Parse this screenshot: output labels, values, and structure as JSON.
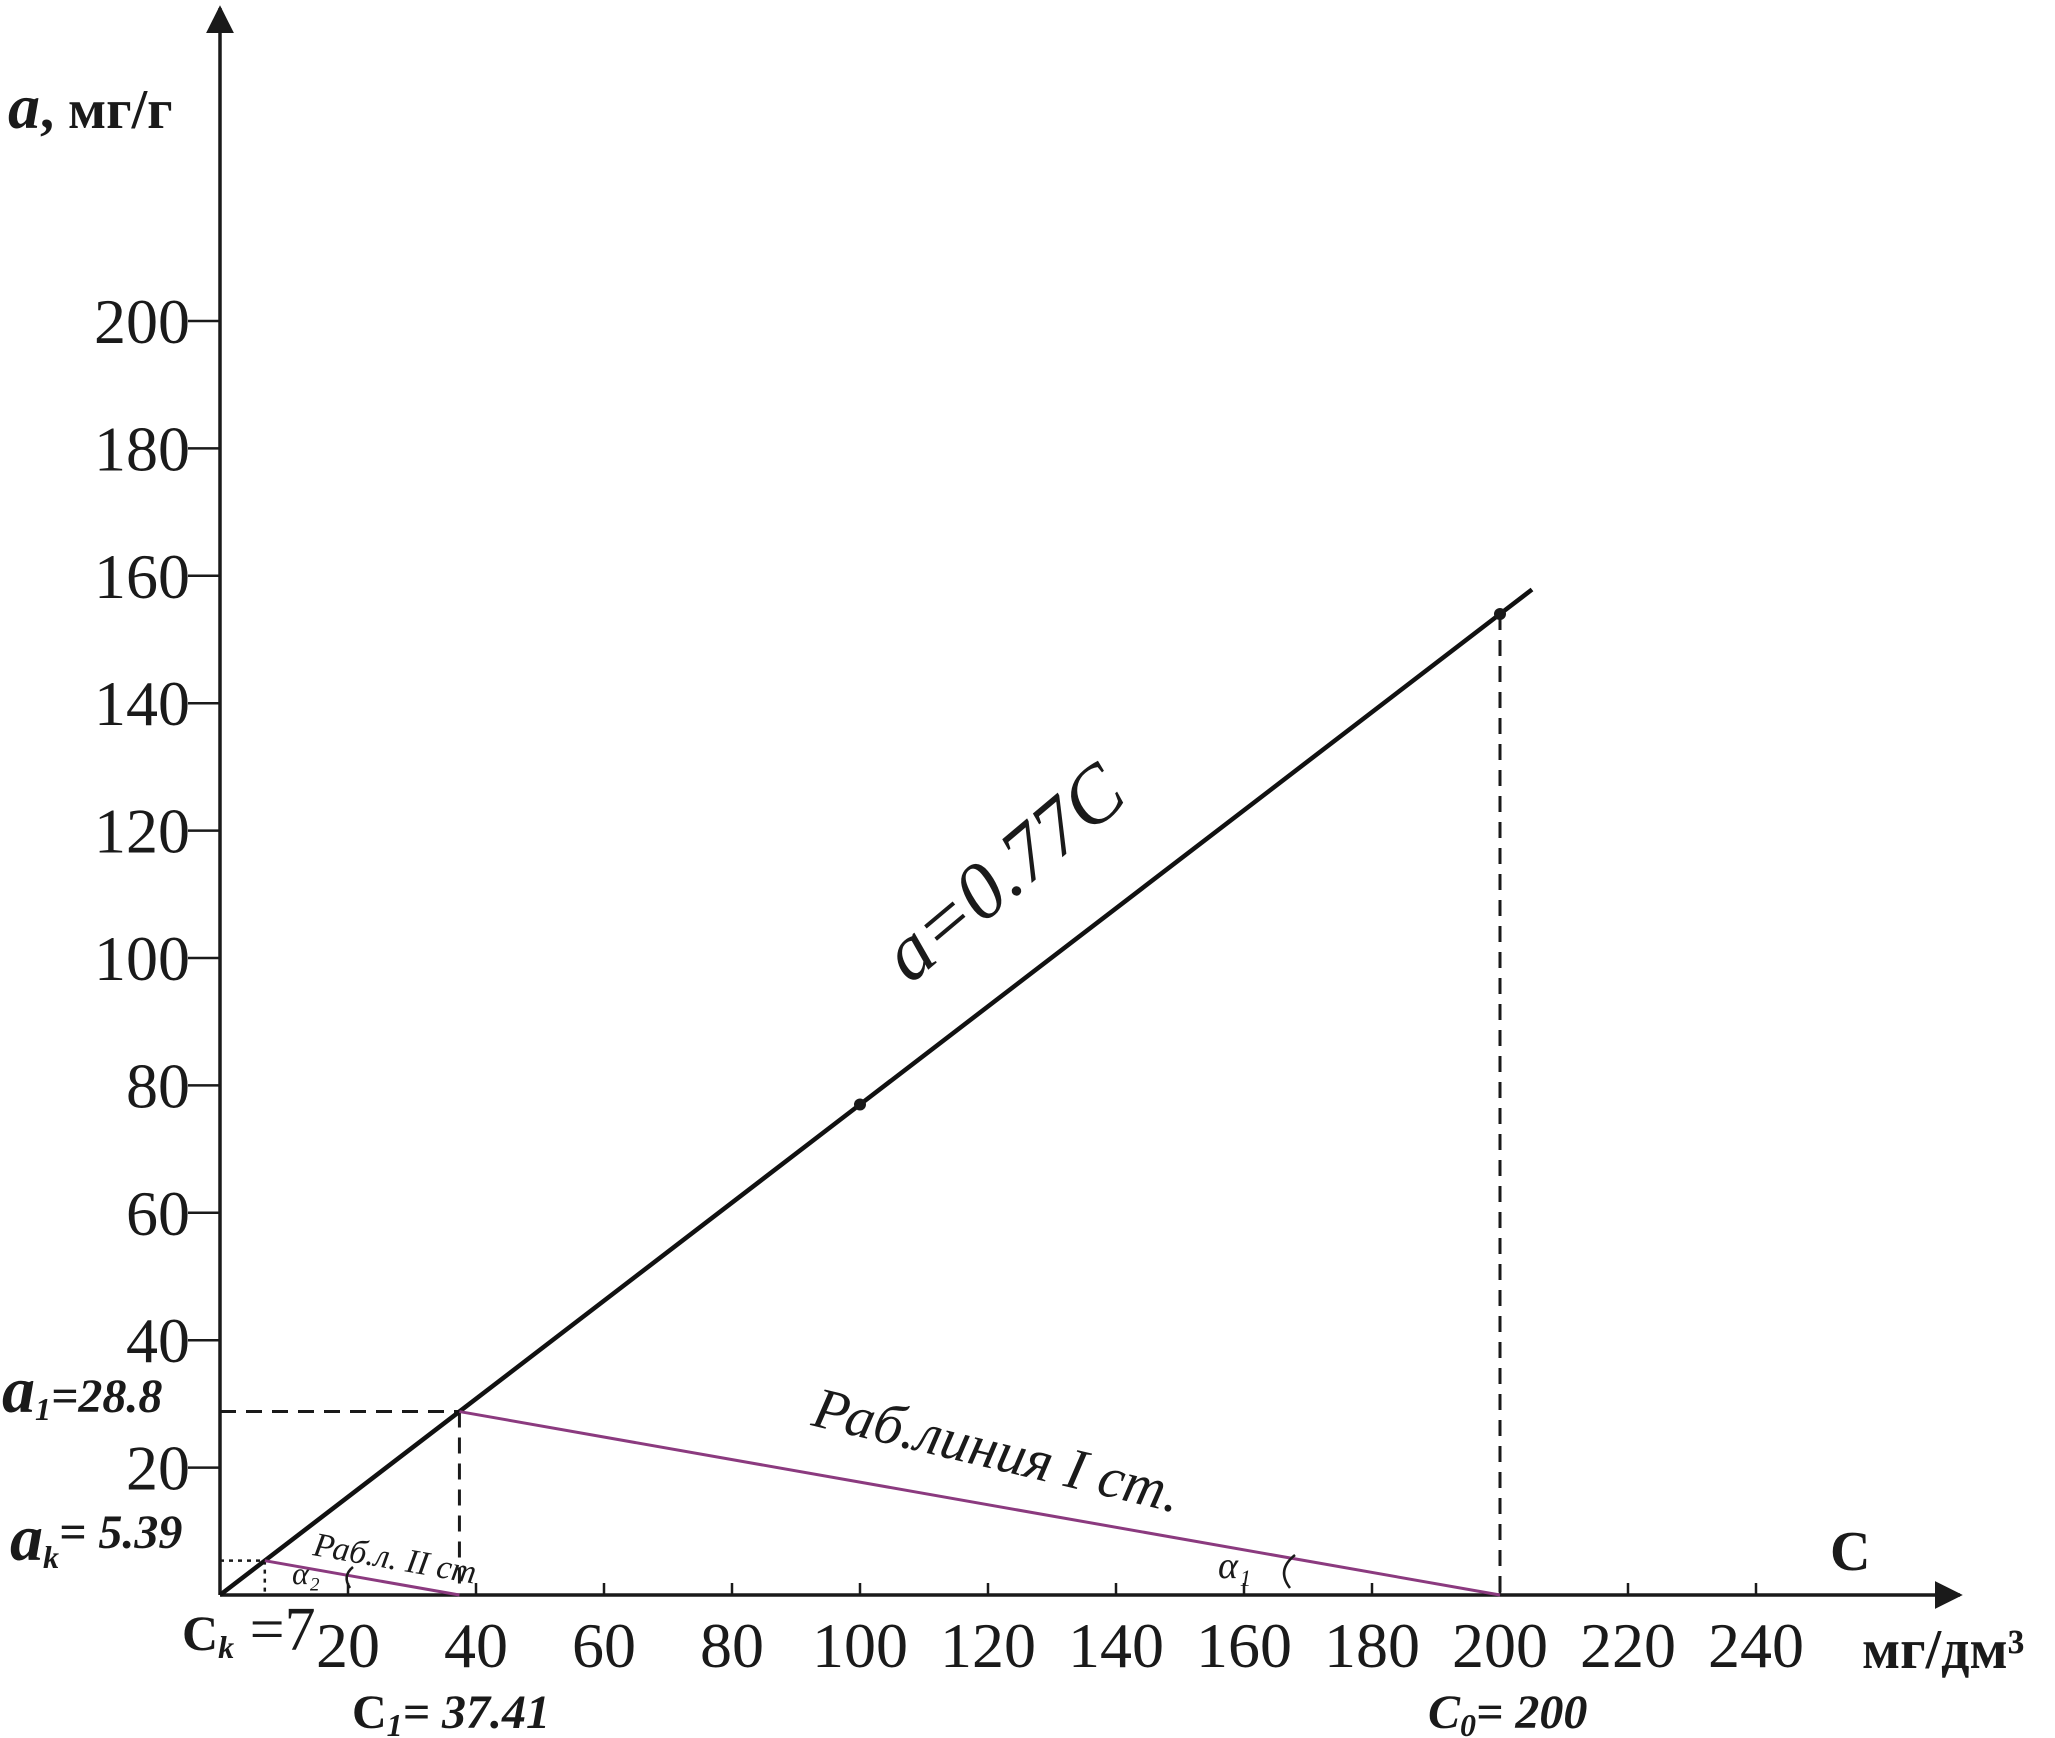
{
  "chart_data": {
    "type": "line",
    "x_axis": {
      "label": "C",
      "unit": "мг/дм³",
      "range": [
        0,
        260
      ],
      "tick_labels": [
        "20",
        "40",
        "60",
        "80",
        "100",
        "120",
        "140",
        "160",
        "180",
        "200",
        "220",
        "240"
      ],
      "tick_values": [
        20,
        40,
        60,
        80,
        100,
        120,
        140,
        160,
        180,
        200,
        220,
        240
      ]
    },
    "y_axis": {
      "label": "a",
      "unit": ", мг/г",
      "range": [
        0,
        245
      ],
      "tick_labels": [
        "20",
        "40",
        "60",
        "80",
        "100",
        "120",
        "140",
        "160",
        "180",
        "200"
      ],
      "tick_values": [
        20,
        40,
        60,
        80,
        100,
        120,
        140,
        160,
        180,
        200
      ]
    },
    "grid": false,
    "series": [
      {
        "name": "a=0.77C",
        "kind": "isotherm",
        "color": "#111111",
        "x": [
          0,
          37.41,
          100,
          200,
          205
        ],
        "y": [
          0,
          28.8,
          77,
          154,
          157.85
        ],
        "marked_points": [
          [
            100,
            77
          ],
          [
            200,
            154
          ]
        ]
      },
      {
        "name": "Раб.линия I ст.",
        "kind": "working-line",
        "color": "#8b3a7f",
        "x": [
          200,
          37.41
        ],
        "y": [
          0,
          28.8
        ]
      },
      {
        "name": "Раб.л. II ст",
        "kind": "working-line",
        "color": "#8b3a7f",
        "x": [
          37.41,
          7
        ],
        "y": [
          0,
          5.39
        ]
      }
    ],
    "annotations": {
      "equation": "a=0.77C",
      "working_line_1": "Раб.линия I ст.",
      "working_line_2": "Раб.л. II ст",
      "alpha_1": "α₁",
      "alpha_2": "α₂",
      "a1_main": "a",
      "a1_sub": "1",
      "a1_value": "=28.8",
      "ak_main": "a",
      "ak_sub": "k",
      "ak_value": "= 5.39",
      "ck_main": "C",
      "ck_sub": "k",
      "ck_value": " =7",
      "c1_main": "C",
      "c1_sub": "1",
      "c1_value": "= 37.41",
      "c0_main": "C",
      "c0_sub": "0",
      "c0_value": "= 200"
    },
    "reference_values": {
      "a1": 28.8,
      "ak": 5.39,
      "ck": 7,
      "c1": 37.41,
      "c0": 200
    }
  }
}
